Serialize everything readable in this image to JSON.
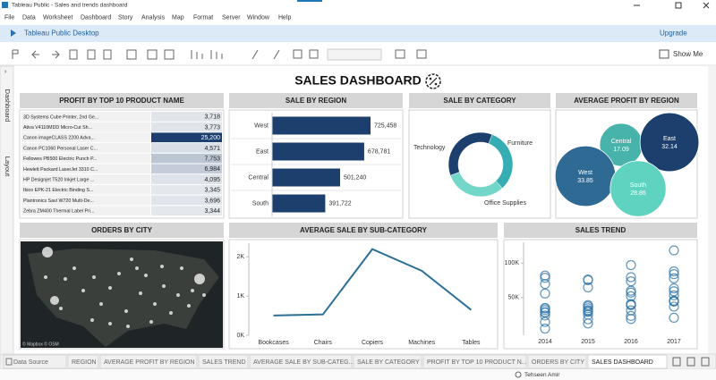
{
  "window": {
    "title": "Tableau Public - Sales and trends dashboard"
  },
  "menu": [
    "File",
    "Data",
    "Worksheet",
    "Dashboard",
    "Story",
    "Analysis",
    "Map",
    "Format",
    "Server",
    "Window",
    "Help"
  ],
  "brand": "Tableau Public Desktop",
  "upgrade": "Upgrade",
  "show_me": "Show Me",
  "side_tabs": [
    "Dashboard",
    "Layout"
  ],
  "dashboard_title": "SALES DASHBOARD",
  "sheet_tabs": [
    "Data Source",
    "REGION",
    "AVERAGE PROFIT BY REGION",
    "SALES TREND",
    "AVERAGE SALE BY SUB-CATEG...",
    "SALE BY CATEGORY",
    "PROFIT BY TOP 10 PRODUCT N...",
    "ORDERS BY CITY",
    "SALES DASHBOARD"
  ],
  "user": "Tehseen Amir",
  "chart_data": [
    {
      "type": "table",
      "title": "PROFIT BY TOP 10 PRODUCT NAME",
      "categories": [
        "3D Systems Cube Printer, 2nd Ge...",
        "Ativa V4110MDD Micro-Cut Sh...",
        "Canon imageCLASS 2200 Adva...",
        "Canon PC1060 Personal Laser C...",
        "Fellowes PB500 Electric Punch P...",
        "Hewlett Packard LaserJet 3310 C...",
        "HP Designjet T520 Inkjet Large ...",
        "Ibico EPK-21 Electric Binding S...",
        "Plantronics Savi W720 Multi-De...",
        "Zebra ZM400 Thermal Label Pri..."
      ],
      "values": [
        3718,
        3773,
        25200,
        4571,
        7753,
        6984,
        4095,
        3345,
        3696,
        3344
      ],
      "value_labels": [
        "3,718",
        "3,773",
        "25,200",
        "4,571",
        "7,753",
        "6,984",
        "4,095",
        "3,345",
        "3,696",
        "3,344"
      ],
      "color_scale": [
        "#e4e8ed",
        "#1d3f6e"
      ]
    },
    {
      "type": "hbar",
      "title": "SALE BY REGION",
      "categories": [
        "West",
        "East",
        "Central",
        "South"
      ],
      "values": [
        725458,
        678781,
        501240,
        391722
      ],
      "value_labels": [
        "725,458",
        "678,781",
        "501,240",
        "391,722"
      ],
      "color": "#1d3f6e"
    },
    {
      "type": "donut",
      "title": "SALE BY CATEGORY",
      "categories": [
        "Technology",
        "Furniture",
        "Office Supplies"
      ],
      "values": [
        36.4,
        32.3,
        31.3
      ],
      "colors": [
        "#1d3f6e",
        "#35adb2",
        "#72d6c8"
      ]
    },
    {
      "type": "bubble",
      "title": "AVERAGE PROFIT BY REGION",
      "categories": [
        "Central",
        "East",
        "West",
        "South"
      ],
      "values": [
        17.09,
        32.14,
        33.85,
        28.86
      ],
      "colors": [
        "#48b3ab",
        "#1d3f6e",
        "#2e6a94",
        "#5fd3bf"
      ]
    },
    {
      "type": "map",
      "title": "ORDERS BY CITY",
      "attribution": "© Mapbox © OSM"
    },
    {
      "type": "line",
      "title": "AVERAGE SALE BY SUB-CATEGORY",
      "categories": [
        "Bookcases",
        "Chairs",
        "Copiers",
        "Machines",
        "Tables"
      ],
      "values": [
        504,
        532,
        2199,
        1646,
        649
      ],
      "color": "#2b6f98",
      "ylim": [
        0,
        2350
      ],
      "yticks": [
        {
          "value": 0,
          "label": "0K"
        },
        {
          "value": 1000,
          "label": "1K"
        },
        {
          "value": 2000,
          "label": "2K"
        }
      ]
    },
    {
      "type": "scatter",
      "title": "SALES TREND",
      "categories": [
        "2014",
        "2015",
        "2016",
        "2017"
      ],
      "values": [
        [
          14237,
          4520,
          55691,
          28295,
          23648,
          34595,
          33946,
          27909,
          81777,
          31453,
          78629,
          69546
        ],
        [
          18174,
          11951,
          38726,
          34195,
          30132,
          24797,
          28765,
          36898,
          64595,
          31405,
          75973,
          74919
        ],
        [
          18542,
          22979,
          51716,
          38750,
          56988,
          40344,
          39262,
          31115,
          73410,
          59688,
          79412,
          96999
        ],
        [
          43971,
          20301,
          58872,
          36522,
          44261,
          52981,
          45264,
          63121,
          87867,
          77777,
          118448,
          83829
        ]
      ],
      "color": "#2e74a8",
      "ylim": [
        0,
        125000
      ],
      "yticks": [
        {
          "value": 50000,
          "label": "50K"
        },
        {
          "value": 100000,
          "label": "100K"
        }
      ]
    }
  ]
}
